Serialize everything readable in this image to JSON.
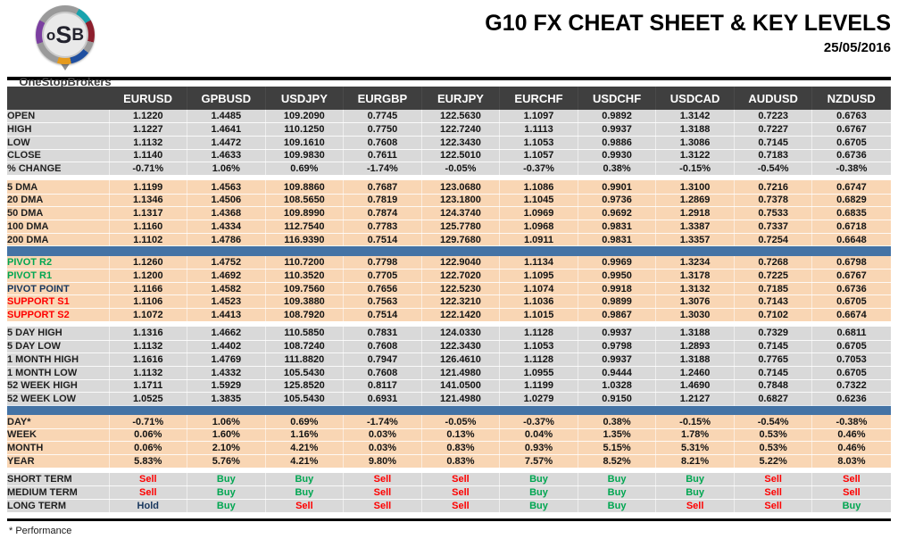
{
  "header": {
    "logo_monogram": {
      "o": "o",
      "s": "S",
      "b": "B"
    },
    "brand": "OneStopBrokers",
    "title": "G10 FX CHEAT SHEET & KEY LEVELS",
    "date": "25/05/2016"
  },
  "footer": {
    "note": "* Performance"
  },
  "colors": {
    "header_bg": "#3f3f3f",
    "gray_row": "#d9d9d9",
    "peach_row": "#f9d6b4",
    "blue_divider": "#4473a5",
    "buy_green": "#00a651",
    "sell_red": "#fe0000",
    "hold_navy": "#17365d"
  },
  "chart_data": {
    "type": "table",
    "title": "G10 FX CHEAT SHEET & KEY LEVELS",
    "date": "25/05/2016",
    "columns": [
      "EURUSD",
      "GPBUSD",
      "USDJPY",
      "EURGBP",
      "EURJPY",
      "EURCHF",
      "USDCHF",
      "USDCAD",
      "AUDUSD",
      "NZDUSD"
    ],
    "sections": [
      {
        "id": "price",
        "style": "gray",
        "after": "gap",
        "rows": [
          {
            "label": "OPEN",
            "values": [
              "1.1220",
              "1.4485",
              "109.2090",
              "0.7745",
              "122.5630",
              "1.1097",
              "0.9892",
              "1.3142",
              "0.7223",
              "0.6763"
            ]
          },
          {
            "label": "HIGH",
            "values": [
              "1.1227",
              "1.4641",
              "110.1250",
              "0.7750",
              "122.7240",
              "1.1113",
              "0.9937",
              "1.3188",
              "0.7227",
              "0.6767"
            ]
          },
          {
            "label": "LOW",
            "values": [
              "1.1132",
              "1.4472",
              "109.1610",
              "0.7608",
              "122.3430",
              "1.1053",
              "0.9886",
              "1.3086",
              "0.7145",
              "0.6705"
            ]
          },
          {
            "label": "CLOSE",
            "values": [
              "1.1140",
              "1.4633",
              "109.9830",
              "0.7611",
              "122.5010",
              "1.1057",
              "0.9930",
              "1.3122",
              "0.7183",
              "0.6736"
            ]
          },
          {
            "label": "% CHANGE",
            "values": [
              "-0.71%",
              "1.06%",
              "0.69%",
              "-1.74%",
              "-0.05%",
              "-0.37%",
              "0.38%",
              "-0.15%",
              "-0.54%",
              "-0.38%"
            ]
          }
        ]
      },
      {
        "id": "dma",
        "style": "peach",
        "after": "blue",
        "rows": [
          {
            "label": "5 DMA",
            "values": [
              "1.1199",
              "1.4563",
              "109.8860",
              "0.7687",
              "123.0680",
              "1.1086",
              "0.9901",
              "1.3100",
              "0.7216",
              "0.6747"
            ]
          },
          {
            "label": "20 DMA",
            "values": [
              "1.1346",
              "1.4506",
              "108.5650",
              "0.7819",
              "123.1800",
              "1.1045",
              "0.9736",
              "1.2869",
              "0.7378",
              "0.6829"
            ]
          },
          {
            "label": "50 DMA",
            "values": [
              "1.1317",
              "1.4368",
              "109.8990",
              "0.7874",
              "124.3740",
              "1.0969",
              "0.9692",
              "1.2918",
              "0.7533",
              "0.6835"
            ]
          },
          {
            "label": "100 DMA",
            "values": [
              "1.1160",
              "1.4334",
              "112.7540",
              "0.7783",
              "125.7780",
              "1.0968",
              "0.9831",
              "1.3387",
              "0.7337",
              "0.6718"
            ]
          },
          {
            "label": "200 DMA",
            "values": [
              "1.1102",
              "1.4786",
              "116.9390",
              "0.7514",
              "129.7680",
              "1.0911",
              "0.9831",
              "1.3357",
              "0.7254",
              "0.6648"
            ]
          }
        ]
      },
      {
        "id": "pivot",
        "style": "peach",
        "after": "gap",
        "rows": [
          {
            "label": "PIVOT R2",
            "label_color": "green",
            "values": [
              "1.1260",
              "1.4752",
              "110.7200",
              "0.7798",
              "122.9040",
              "1.1134",
              "0.9969",
              "1.3234",
              "0.7268",
              "0.6798"
            ]
          },
          {
            "label": "PIVOT R1",
            "label_color": "green",
            "values": [
              "1.1200",
              "1.4692",
              "110.3520",
              "0.7705",
              "122.7020",
              "1.1095",
              "0.9950",
              "1.3178",
              "0.7225",
              "0.6767"
            ]
          },
          {
            "label": "PIVOT POINT",
            "label_color": "navy",
            "values": [
              "1.1166",
              "1.4582",
              "109.7560",
              "0.7656",
              "122.5230",
              "1.1074",
              "0.9918",
              "1.3132",
              "0.7185",
              "0.6736"
            ]
          },
          {
            "label": "SUPPORT S1",
            "label_color": "red",
            "values": [
              "1.1106",
              "1.4523",
              "109.3880",
              "0.7563",
              "122.3210",
              "1.1036",
              "0.9899",
              "1.3076",
              "0.7143",
              "0.6705"
            ]
          },
          {
            "label": "SUPPORT S2",
            "label_color": "red",
            "values": [
              "1.1072",
              "1.4413",
              "108.7920",
              "0.7514",
              "122.1420",
              "1.1015",
              "0.9867",
              "1.3030",
              "0.7102",
              "0.6674"
            ]
          }
        ]
      },
      {
        "id": "range",
        "style": "gray",
        "after": "blue",
        "rows": [
          {
            "label": "5 DAY HIGH",
            "values": [
              "1.1316",
              "1.4662",
              "110.5850",
              "0.7831",
              "124.0330",
              "1.1128",
              "0.9937",
              "1.3188",
              "0.7329",
              "0.6811"
            ]
          },
          {
            "label": "5 DAY LOW",
            "values": [
              "1.1132",
              "1.4402",
              "108.7240",
              "0.7608",
              "122.3430",
              "1.1053",
              "0.9798",
              "1.2893",
              "0.7145",
              "0.6705"
            ]
          },
          {
            "label": "1 MONTH HIGH",
            "values": [
              "1.1616",
              "1.4769",
              "111.8820",
              "0.7947",
              "126.4610",
              "1.1128",
              "0.9937",
              "1.3188",
              "0.7765",
              "0.7053"
            ]
          },
          {
            "label": "1 MONTH LOW",
            "values": [
              "1.1132",
              "1.4332",
              "105.5430",
              "0.7608",
              "121.4980",
              "1.0955",
              "0.9444",
              "1.2460",
              "0.7145",
              "0.6705"
            ]
          },
          {
            "label": "52 WEEK HIGH",
            "values": [
              "1.1711",
              "1.5929",
              "125.8520",
              "0.8117",
              "141.0500",
              "1.1199",
              "1.0328",
              "1.4690",
              "0.7848",
              "0.7322"
            ]
          },
          {
            "label": "52 WEEK LOW",
            "values": [
              "1.0525",
              "1.3835",
              "105.5430",
              "0.6931",
              "121.4980",
              "1.0279",
              "0.9150",
              "1.2127",
              "0.6827",
              "0.6236"
            ]
          }
        ]
      },
      {
        "id": "performance",
        "style": "peach",
        "after": "gap",
        "rows": [
          {
            "label": "DAY*",
            "values": [
              "-0.71%",
              "1.06%",
              "0.69%",
              "-1.74%",
              "-0.05%",
              "-0.37%",
              "0.38%",
              "-0.15%",
              "-0.54%",
              "-0.38%"
            ]
          },
          {
            "label": "WEEK",
            "values": [
              "0.06%",
              "1.60%",
              "1.16%",
              "0.03%",
              "0.13%",
              "0.04%",
              "1.35%",
              "1.78%",
              "0.53%",
              "0.46%"
            ]
          },
          {
            "label": "MONTH",
            "values": [
              "0.06%",
              "2.10%",
              "4.21%",
              "0.03%",
              "0.83%",
              "0.93%",
              "5.15%",
              "5.31%",
              "0.53%",
              "0.46%"
            ]
          },
          {
            "label": "YEAR",
            "values": [
              "5.83%",
              "5.76%",
              "4.21%",
              "9.80%",
              "0.83%",
              "7.57%",
              "8.52%",
              "8.21%",
              "5.22%",
              "8.03%"
            ]
          }
        ]
      },
      {
        "id": "term",
        "style": "gray",
        "after": "none",
        "rows": [
          {
            "label": "SHORT TERM",
            "values": [
              "Sell",
              "Buy",
              "Buy",
              "Sell",
              "Sell",
              "Buy",
              "Buy",
              "Buy",
              "Sell",
              "Sell"
            ]
          },
          {
            "label": "MEDIUM TERM",
            "values": [
              "Sell",
              "Buy",
              "Buy",
              "Sell",
              "Sell",
              "Buy",
              "Buy",
              "Buy",
              "Sell",
              "Sell"
            ]
          },
          {
            "label": "LONG TERM",
            "values": [
              "Hold",
              "Buy",
              "Sell",
              "Sell",
              "Sell",
              "Buy",
              "Buy",
              "Sell",
              "Sell",
              "Buy"
            ]
          }
        ]
      }
    ]
  }
}
